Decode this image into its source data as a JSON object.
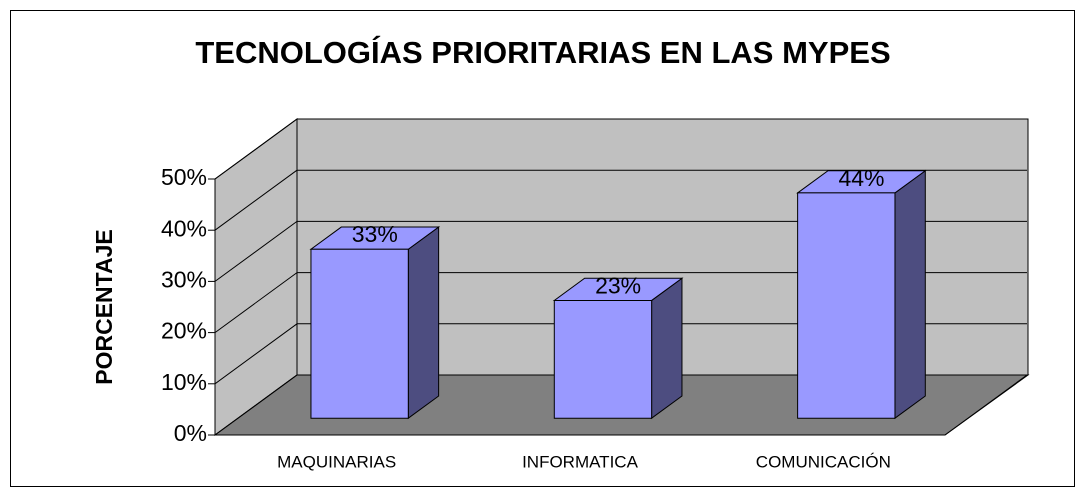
{
  "chart_data": {
    "type": "bar3d",
    "title": "TECNOLOGÍAS PRIORITARIAS EN LAS MYPES",
    "y_label": "PORCENTAJE",
    "categories": [
      "MAQUINARIAS",
      "INFORMATICA",
      "COMUNICACIÓN"
    ],
    "values": [
      33,
      23,
      44
    ],
    "value_labels": [
      "33%",
      "23%",
      "44%"
    ],
    "color": "#9999ff",
    "side_color": "#4d4d80",
    "ylim": [
      0,
      50
    ],
    "yticks": [
      {
        "value": 0,
        "label": "0%"
      },
      {
        "value": 10,
        "label": "10%"
      },
      {
        "value": 20,
        "label": "20%"
      },
      {
        "value": 30,
        "label": "30%"
      },
      {
        "value": 40,
        "label": "40%"
      },
      {
        "value": 50,
        "label": "50%"
      }
    ],
    "grid": true
  }
}
